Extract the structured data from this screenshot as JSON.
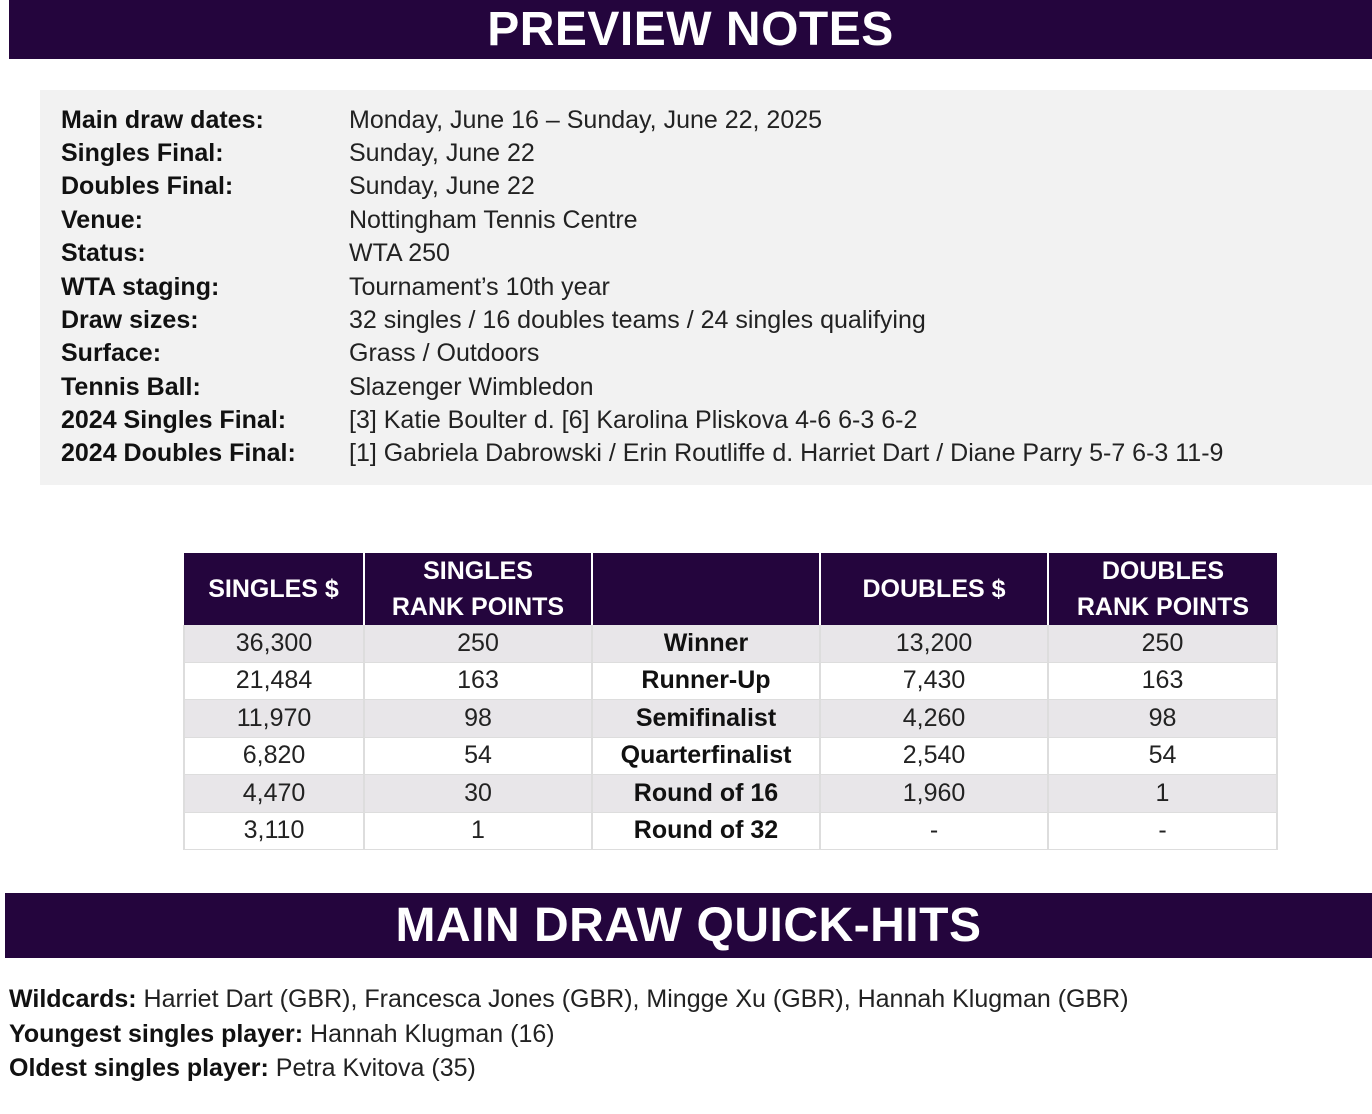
{
  "header": {
    "title": "PREVIEW NOTES"
  },
  "info": [
    {
      "label": "Main draw dates:",
      "value": "Monday, June 16 – Sunday, June 22, 2025"
    },
    {
      "label": "Singles Final:",
      "value": "Sunday, June 22"
    },
    {
      "label": "Doubles Final:",
      "value": "Sunday, June 22"
    },
    {
      "label": "Venue:",
      "value": "Nottingham Tennis Centre"
    },
    {
      "label": "Status:",
      "value": "WTA 250"
    },
    {
      "label": "WTA staging:",
      "value": "Tournament’s 10th year"
    },
    {
      "label": "Draw sizes:",
      "value": "32 singles / 16 doubles teams / 24 singles qualifying"
    },
    {
      "label": "Surface:",
      "value": "Grass / Outdoors"
    },
    {
      "label": "Tennis Ball:",
      "value": "Slazenger Wimbledon"
    },
    {
      "label": "2024 Singles Final:",
      "value": "[3] Katie Boulter d. [6] Karolina Pliskova 4-6 6-3 6-2"
    },
    {
      "label": "2024 Doubles Final:",
      "value": "[1] Gabriela Dabrowski / Erin Routliffe d. Harriet Dart / Diane Parry 5-7 6-3 11-9"
    }
  ],
  "prize_table": {
    "headers": {
      "singles_money": "SINGLES $",
      "singles_points_line1": "SINGLES",
      "singles_points_line2": "RANK POINTS",
      "round": "",
      "doubles_money": "DOUBLES $",
      "doubles_points_line1": "DOUBLES",
      "doubles_points_line2": "RANK POINTS"
    },
    "rows": [
      {
        "singles_money": "36,300",
        "singles_points": "250",
        "round": "Winner",
        "doubles_money": "13,200",
        "doubles_points": "250"
      },
      {
        "singles_money": "21,484",
        "singles_points": "163",
        "round": "Runner-Up",
        "doubles_money": "7,430",
        "doubles_points": "163"
      },
      {
        "singles_money": "11,970",
        "singles_points": "98",
        "round": "Semifinalist",
        "doubles_money": "4,260",
        "doubles_points": "98"
      },
      {
        "singles_money": "6,820",
        "singles_points": "54",
        "round": "Quarterfinalist",
        "doubles_money": "2,540",
        "doubles_points": "54"
      },
      {
        "singles_money": "4,470",
        "singles_points": "30",
        "round": "Round of 16",
        "doubles_money": "1,960",
        "doubles_points": "1"
      },
      {
        "singles_money": "3,110",
        "singles_points": "1",
        "round": "Round of 32",
        "doubles_money": "-",
        "doubles_points": "-"
      }
    ]
  },
  "quick_hits": {
    "title": "MAIN DRAW QUICK-HITS",
    "items": [
      {
        "label": "Wildcards:",
        "value": " Harriet Dart (GBR), Francesca Jones (GBR), Mingge Xu (GBR), Hannah Klugman (GBR)"
      },
      {
        "label": "Youngest singles player:",
        "value": " Hannah Klugman (16)"
      },
      {
        "label": "Oldest singles player:",
        "value": " Petra Kvitova (35)"
      }
    ]
  },
  "colors": {
    "banner": "#24053d",
    "panel": "#f2f2f2",
    "row_alt": "#e8e6e9"
  }
}
